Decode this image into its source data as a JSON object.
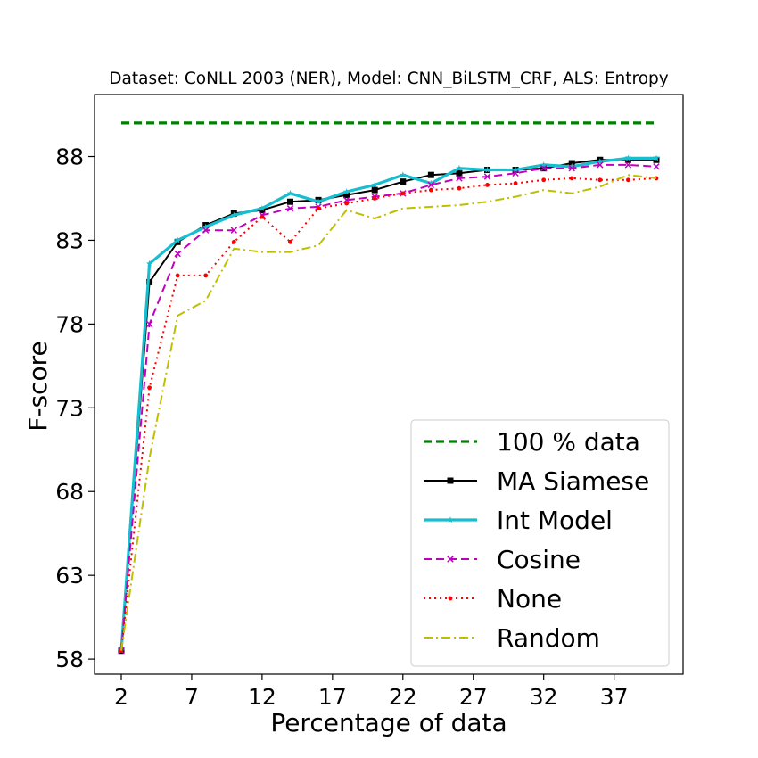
{
  "chart_data": {
    "type": "line",
    "title": "Dataset: CoNLL 2003 (NER), Model: CNN_BiLSTM_CRF, ALS: Entropy",
    "xlabel": "Percentage of data",
    "ylabel": "F-score",
    "xlim": [
      0.1,
      41.9
    ],
    "ylim": [
      57.1,
      91.7
    ],
    "xticks": [
      2,
      7,
      12,
      17,
      22,
      27,
      32,
      37
    ],
    "yticks": [
      58,
      63,
      68,
      73,
      78,
      83,
      88
    ],
    "grid": false,
    "legend_position": "lower-right",
    "x": [
      2,
      4,
      6,
      8,
      10,
      12,
      14,
      16,
      18,
      20,
      22,
      24,
      26,
      28,
      30,
      32,
      34,
      36,
      38,
      40
    ],
    "series": [
      {
        "name": "100 % data",
        "color": "#008000",
        "line_style": "dashed",
        "marker": "none",
        "x": [
          2,
          40
        ],
        "values": [
          90.0,
          90.0
        ]
      },
      {
        "name": "MA Siamese",
        "color": "#000000",
        "line_style": "solid",
        "marker": "square",
        "values": [
          58.5,
          80.5,
          82.9,
          83.9,
          84.6,
          84.8,
          85.3,
          85.4,
          85.7,
          86.0,
          86.5,
          86.9,
          87.0,
          87.2,
          87.2,
          87.3,
          87.6,
          87.8,
          87.8,
          87.8
        ]
      },
      {
        "name": "Int Model",
        "color": "#17becf",
        "line_style": "solid",
        "marker": "star",
        "values": [
          58.5,
          81.6,
          83.0,
          83.8,
          84.5,
          84.9,
          85.8,
          85.3,
          85.9,
          86.3,
          86.9,
          86.4,
          87.3,
          87.2,
          87.2,
          87.5,
          87.4,
          87.7,
          87.9,
          87.9
        ]
      },
      {
        "name": "Cosine",
        "color": "#bf00bf",
        "line_style": "dashed",
        "marker": "x",
        "values": [
          58.5,
          78.0,
          82.2,
          83.6,
          83.6,
          84.5,
          84.9,
          85.0,
          85.4,
          85.6,
          85.8,
          86.3,
          86.7,
          86.8,
          87.0,
          87.3,
          87.3,
          87.5,
          87.5,
          87.4
        ]
      },
      {
        "name": "None",
        "color": "#ff0000",
        "line_style": "dotted",
        "marker": "dot",
        "values": [
          58.5,
          74.2,
          80.9,
          80.9,
          82.9,
          84.4,
          82.9,
          84.9,
          85.2,
          85.5,
          85.8,
          86.0,
          86.1,
          86.3,
          86.4,
          86.6,
          86.7,
          86.6,
          86.6,
          86.7
        ]
      },
      {
        "name": "Random",
        "color": "#bfbf00",
        "line_style": "dashdot",
        "marker": "none",
        "values": [
          58.5,
          70.0,
          78.5,
          79.4,
          82.5,
          82.3,
          82.3,
          82.7,
          84.8,
          84.3,
          84.9,
          85.0,
          85.1,
          85.3,
          85.6,
          86.0,
          85.8,
          86.2,
          86.9,
          86.7
        ]
      }
    ]
  }
}
